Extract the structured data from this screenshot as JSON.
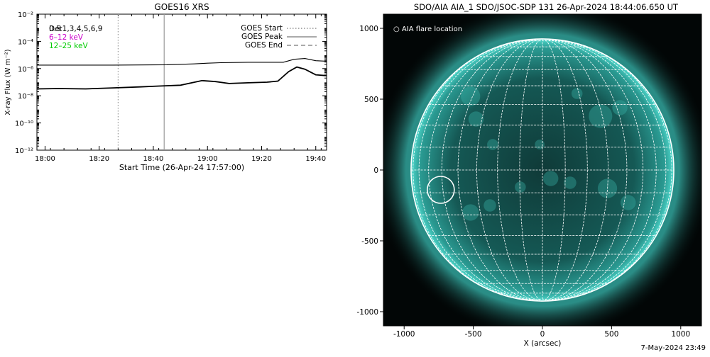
{
  "chart_data": [
    {
      "type": "line",
      "title": "GOES16 XRS",
      "xlabel": "Start Time (26-Apr-24 17:57:00)",
      "ylabel": "X-ray Flux (W m⁻²)",
      "y_scale": "log",
      "ylim": [
        1e-12,
        0.01
      ],
      "xlim": [
        "17:57",
        "19:44"
      ],
      "x_ticks": [
        "18:00",
        "18:20",
        "18:40",
        "19:00",
        "19:20",
        "19:40"
      ],
      "y_ticks": [
        "10⁻²",
        "10⁻⁴",
        "10⁻⁶",
        "10⁻⁸",
        "10⁻¹⁰",
        "10⁻¹²"
      ],
      "series_label_lines": [
        "Det1,3,4,5,6,9",
        "6–12 keV",
        "12–25 keV"
      ],
      "series_label_overlap": "0.5",
      "legend": [
        {
          "label": "GOES Start",
          "style": "dotted"
        },
        {
          "label": "GOES Peak",
          "style": "solid"
        },
        {
          "label": "GOES End",
          "style": "dashed"
        }
      ],
      "markers": [
        {
          "time": "18:27",
          "style": "dotted",
          "color": "#999999"
        },
        {
          "time": "18:44",
          "style": "solid",
          "color": "#999999"
        }
      ],
      "series": [
        {
          "color": "#000000",
          "x": [
            "17:57",
            "18:05",
            "18:15",
            "18:25",
            "18:35",
            "18:45",
            "18:55",
            "19:00",
            "19:05",
            "19:15",
            "19:25",
            "19:28",
            "19:32",
            "19:36",
            "19:40",
            "19:44"
          ],
          "values": [
            1.8e-06,
            1.8e-06,
            1.8e-06,
            1.8e-06,
            1.85e-06,
            1.9e-06,
            2.2e-06,
            2.5e-06,
            2.7e-06,
            2.9e-06,
            2.9e-06,
            2.9e-06,
            4.8e-06,
            5.5e-06,
            3.8e-06,
            3.5e-06
          ]
        },
        {
          "color": "#000000",
          "x": [
            "17:57",
            "18:05",
            "18:15",
            "18:25",
            "18:35",
            "18:42",
            "18:50",
            "18:58",
            "19:03",
            "19:08",
            "19:15",
            "19:22",
            "19:26",
            "19:30",
            "19:33",
            "19:36",
            "19:40",
            "19:44"
          ],
          "values": [
            3.2e-08,
            3.4e-08,
            3.2e-08,
            3.8e-08,
            4.5e-08,
            5.2e-08,
            6e-08,
            1.3e-07,
            1.1e-07,
            8e-08,
            9e-08,
            1e-07,
            1.2e-07,
            6e-07,
            1.3e-06,
            9e-07,
            3.5e-07,
            3e-07
          ]
        }
      ]
    },
    {
      "type": "image",
      "title": "SDO/AIA AIA_1 SDO/JSOC-SDP 131 26-Apr-2024 18:44:06.650 UT",
      "xlabel": "X (arcsec)",
      "ylabel": "",
      "xlim": [
        -1150,
        1150
      ],
      "ylim": [
        -1100,
        1100
      ],
      "x_ticks": [
        -1000,
        -500,
        0,
        500,
        1000
      ],
      "y_ticks": [
        -1000,
        -500,
        0,
        500,
        1000
      ],
      "disk_radius_arcsec": 950,
      "grid": true,
      "grid_spacing_deg": 10,
      "legend": "○ AIA flare location",
      "flare_location_arcsec": [
        -735,
        -140
      ],
      "disk_color": "#1a6e6a",
      "grid_color": "#ffffff"
    }
  ],
  "footer": {
    "timestamp": "7-May-2024 23:49"
  }
}
